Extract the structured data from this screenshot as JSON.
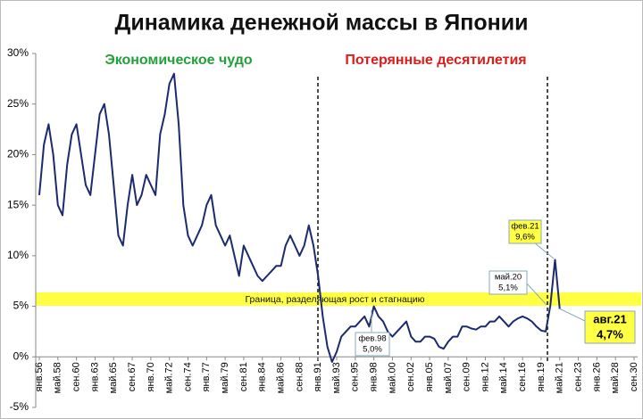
{
  "chart_data": {
    "type": "line",
    "title": "Динамика денежной массы в Японии",
    "headings": [
      {
        "text": "Экономическое чудо",
        "color": "#22a03a"
      },
      {
        "text": "Потерянные десятилетия",
        "color": "#e01b1b"
      }
    ],
    "band_label": "Граница,  разделяющая  рост  и  стагнацию",
    "annotations": [
      {
        "date": "фев.98",
        "value": "5,0%"
      },
      {
        "date": "май.20",
        "value": "5,1%"
      },
      {
        "date": "фев.21",
        "value": "9,6%"
      },
      {
        "date": "авг.21",
        "value": "4,7%"
      }
    ],
    "categories": [
      "янв.56",
      null,
      null,
      null,
      "май.58",
      null,
      null,
      null,
      "сен.60",
      null,
      null,
      null,
      "янв.63",
      null,
      null,
      null,
      "май.65",
      null,
      null,
      null,
      "сен.67",
      null,
      null,
      null,
      "янв.70",
      null,
      null,
      null,
      "май.72",
      null,
      null,
      null,
      "сен.74",
      null,
      null,
      null,
      "янв.77",
      null,
      null,
      null,
      "май.79",
      null,
      null,
      null,
      "сен.81",
      null,
      null,
      null,
      "янв.84",
      null,
      null,
      null,
      "май.86",
      null,
      null,
      null,
      "сен.88",
      null,
      null,
      null,
      "янв.91",
      null,
      null,
      null,
      "май.93",
      null,
      null,
      null,
      "сен.95",
      null,
      null,
      null,
      "янв.98",
      null,
      null,
      null,
      "май.00",
      null,
      null,
      null,
      "сен.02",
      null,
      null,
      null,
      "янв.05",
      null,
      null,
      null,
      "май.07",
      null,
      null,
      null,
      "сен.09",
      null,
      null,
      null,
      "янв.12",
      null,
      null,
      null,
      "май.14",
      null,
      null,
      null,
      "сен.16",
      null,
      null,
      null,
      "янв.19",
      null,
      null,
      null,
      "май.21",
      null,
      null,
      null,
      "сен.23",
      null,
      null,
      null,
      "янв.26",
      null,
      null,
      null,
      "май.28",
      null,
      null,
      null,
      "сен.30"
    ],
    "series": [
      {
        "color": "#1c2a6e",
        "values": [
          16,
          21,
          23,
          20,
          15,
          14,
          19,
          22,
          23,
          20,
          17,
          16,
          20,
          24,
          25,
          22,
          17,
          12,
          11,
          15,
          18,
          15,
          16,
          18,
          17,
          16,
          22,
          24,
          27,
          28,
          23,
          15,
          12,
          11,
          12,
          13,
          15,
          16,
          13,
          12,
          11,
          12,
          10,
          8,
          11,
          10,
          9,
          8,
          7.5,
          8,
          8.5,
          9,
          9,
          11,
          12,
          11,
          10,
          11,
          13,
          11,
          8,
          4,
          1,
          -0.5,
          0.5,
          2,
          2.5,
          3,
          3,
          3.5,
          4,
          3,
          5,
          4,
          3.5,
          2.5,
          2,
          2.5,
          3,
          3.5,
          2,
          1.5,
          1.5,
          2,
          2,
          1.8,
          1,
          0.8,
          1.5,
          2,
          2,
          3,
          3,
          2.8,
          2.7,
          3,
          3,
          3.5,
          3.5,
          4,
          3.5,
          3,
          3.5,
          3.8,
          4,
          3.8,
          3.5,
          3,
          2.6,
          2.5,
          5.1,
          9.6,
          4.7,
          null,
          null,
          null,
          null,
          null,
          null,
          null,
          null,
          null,
          null,
          null,
          null,
          null,
          null,
          null,
          null
        ]
      }
    ],
    "ylim": [
      -5,
      30
    ],
    "yticks": [
      {
        "value": -5,
        "label": "-5%"
      },
      {
        "value": 0,
        "label": "0%"
      },
      {
        "value": 5,
        "label": "5%"
      },
      {
        "value": 10,
        "label": "10%"
      },
      {
        "value": 15,
        "label": "15%"
      },
      {
        "value": 20,
        "label": "20%"
      },
      {
        "value": 25,
        "label": "25%"
      },
      {
        "value": 30,
        "label": "30%"
      }
    ]
  }
}
